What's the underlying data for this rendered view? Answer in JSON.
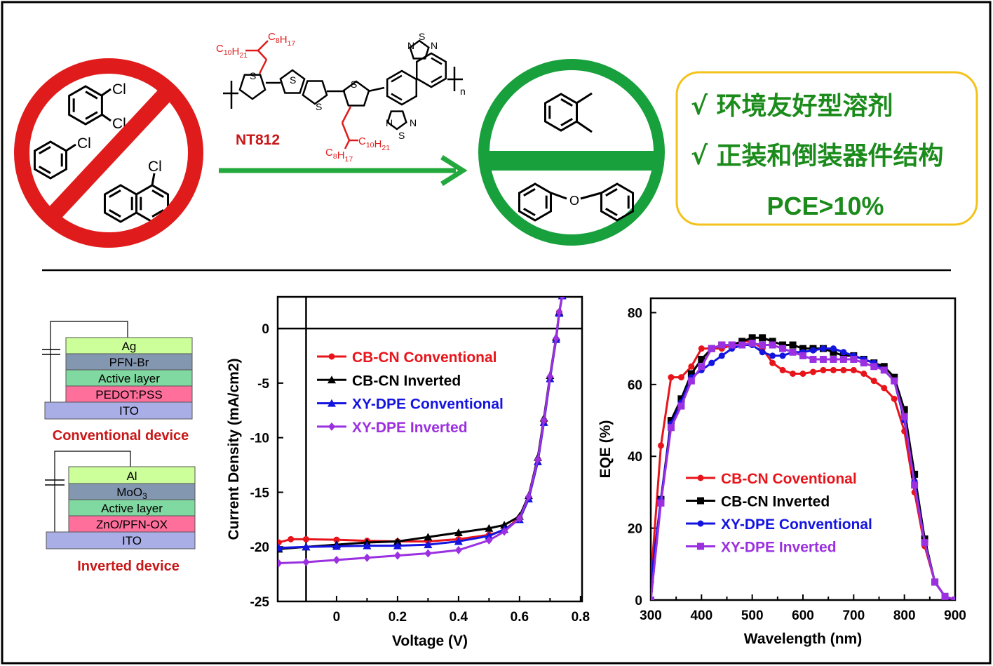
{
  "solvents_banned": {
    "dichlorobenzene_cl1": "Cl",
    "dichlorobenzene_cl2": "Cl",
    "chlorobenzene_cl": "Cl",
    "chloronaphthalene_cl": "Cl"
  },
  "polymer": {
    "name": "NT812",
    "side_chain_top_left": "C10H21",
    "side_chain_top_right": "C8H17",
    "side_chain_bottom_right": "C10H21",
    "side_chain_bottom_left": "C8H17",
    "atom_s": "S",
    "atom_n": "N",
    "repeat": "n"
  },
  "green_solvents": {
    "ether_o": "O"
  },
  "highlights": {
    "item1": "√ 环境友好型溶剂",
    "item2": "√ 正装和倒装器件结构",
    "item3": "PCE>10%"
  },
  "devices": {
    "conventional": {
      "title": "Conventional device",
      "layers": [
        "Ag",
        "PFN-Br",
        "Active layer",
        "PEDOT:PSS",
        "ITO"
      ]
    },
    "inverted": {
      "title": "Inverted device",
      "layers": [
        "Al",
        "MoO3",
        "Active layer",
        "ZnO/PFN-OX",
        "ITO"
      ]
    }
  },
  "colors": {
    "red": "#e8141b",
    "black": "#000000",
    "blue": "#1414e0",
    "purple": "#9b30e0",
    "green": "#17a03c",
    "yellow": "#f3c21b",
    "text_green": "#1b8b1b"
  },
  "chart_data": [
    {
      "type": "line",
      "xlabel": "Voltage (V)",
      "ylabel": "Current Density (mA/cm2)",
      "xlim": [
        -0.193,
        0.805
      ],
      "ylim": [
        -25,
        2.9
      ],
      "xticks": [
        "0",
        "0.2",
        "0.4",
        "0.6",
        "0.8"
      ],
      "yticks": [
        "0",
        "-5",
        "-10",
        "-15",
        "-20",
        "-25"
      ],
      "legend_position": "upper-left",
      "series": [
        {
          "name": "CB-CN Conventional",
          "color": "#e8141b",
          "marker": "circle",
          "x": [
            -0.19,
            -0.15,
            -0.1,
            0,
            0.1,
            0.2,
            0.3,
            0.4,
            0.5,
            0.55,
            0.6,
            0.63,
            0.66,
            0.68,
            0.7,
            0.72,
            0.73,
            0.74
          ],
          "y": [
            -19.6,
            -19.3,
            -19.3,
            -19.35,
            -19.45,
            -19.5,
            -19.5,
            -19.3,
            -18.9,
            -18.5,
            -17.3,
            -15.5,
            -12,
            -8.5,
            -4.5,
            -1,
            1.5,
            3
          ]
        },
        {
          "name": "CB-CN Inverted",
          "color": "#000000",
          "marker": "triangle",
          "x": [
            -0.19,
            -0.1,
            0,
            0.1,
            0.2,
            0.3,
            0.4,
            0.5,
            0.55,
            0.6,
            0.63,
            0.66,
            0.68,
            0.7,
            0.72,
            0.73,
            0.74
          ],
          "y": [
            -20.2,
            -20.0,
            -19.8,
            -19.6,
            -19.5,
            -19.1,
            -18.7,
            -18.3,
            -18.0,
            -17.2,
            -15.3,
            -11.8,
            -8.2,
            -4.3,
            -0.8,
            1.5,
            3
          ]
        },
        {
          "name": "XY-DPE Conventional",
          "color": "#1414e0",
          "marker": "triangle",
          "x": [
            -0.19,
            -0.1,
            0,
            0.1,
            0.2,
            0.3,
            0.4,
            0.5,
            0.55,
            0.6,
            0.63,
            0.66,
            0.68,
            0.7,
            0.72,
            0.73,
            0.74
          ],
          "y": [
            -20.1,
            -20.0,
            -19.95,
            -19.9,
            -19.9,
            -19.8,
            -19.5,
            -19.0,
            -18.4,
            -17.5,
            -15.6,
            -12.2,
            -8.6,
            -4.6,
            -1,
            1.4,
            3
          ]
        },
        {
          "name": "XY-DPE Inverted",
          "color": "#9b30e0",
          "marker": "diamond",
          "x": [
            -0.19,
            -0.1,
            0,
            0.1,
            0.2,
            0.3,
            0.4,
            0.5,
            0.55,
            0.6,
            0.63,
            0.66,
            0.68,
            0.7,
            0.72,
            0.73,
            0.74
          ],
          "y": [
            -21.5,
            -21.4,
            -21.2,
            -21.0,
            -20.8,
            -20.6,
            -20.3,
            -19.4,
            -18.6,
            -17.4,
            -15.4,
            -12,
            -8.4,
            -4.4,
            -0.9,
            1.5,
            3
          ]
        }
      ]
    },
    {
      "type": "line",
      "xlabel": "Wavelength (nm)",
      "ylabel": "EQE (%)",
      "xlim": [
        300,
        900
      ],
      "ylim": [
        0,
        84
      ],
      "xticks": [
        "300",
        "400",
        "500",
        "600",
        "700",
        "800",
        "900"
      ],
      "yticks": [
        "0",
        "20",
        "40",
        "60",
        "80"
      ],
      "legend_position": "lower-center",
      "x": [
        300,
        320,
        340,
        360,
        380,
        400,
        420,
        440,
        460,
        480,
        500,
        520,
        540,
        560,
        580,
        600,
        620,
        640,
        660,
        680,
        700,
        720,
        740,
        760,
        780,
        800,
        820,
        840,
        860,
        880,
        900
      ],
      "series": [
        {
          "name": "CB-CN Coventional",
          "color": "#e8141b",
          "marker": "circle",
          "y": [
            5,
            43,
            62,
            62,
            65,
            70,
            70,
            70,
            71,
            72,
            72,
            70,
            66,
            64,
            63,
            63,
            63.5,
            64,
            64,
            64,
            64,
            63,
            61,
            59,
            56,
            47,
            30,
            15,
            5,
            1,
            0
          ]
        },
        {
          "name": "CB-CN Inverted",
          "color": "#000000",
          "marker": "square",
          "y": [
            0,
            28,
            50,
            56,
            63,
            67,
            70,
            71,
            71,
            72,
            73,
            73,
            72,
            71,
            71,
            70,
            70,
            70,
            69,
            68,
            68,
            67,
            66,
            65,
            62,
            53,
            35,
            17,
            5,
            1,
            0
          ]
        },
        {
          "name": "XY-DPE Conventional",
          "color": "#1414e0",
          "marker": "circle",
          "y": [
            5,
            28,
            49,
            55,
            62,
            64,
            66,
            68,
            70,
            71,
            71,
            69,
            68,
            68,
            69,
            69,
            69.5,
            70,
            70,
            69,
            68,
            67,
            66,
            64,
            61,
            50,
            33,
            16,
            5,
            1,
            0
          ]
        },
        {
          "name": "XY-DPE Inverted",
          "color": "#9b30e0",
          "marker": "square",
          "y": [
            0,
            27,
            48,
            54,
            61,
            65,
            70,
            71,
            71,
            71,
            71.5,
            71,
            71,
            70,
            69,
            68,
            67,
            67,
            67,
            67,
            67,
            66,
            65,
            64,
            61,
            51,
            32,
            16,
            5,
            1,
            0
          ]
        }
      ]
    }
  ]
}
